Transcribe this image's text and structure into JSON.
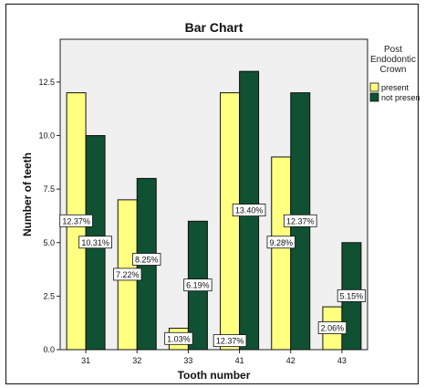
{
  "chart_data": {
    "type": "bar",
    "title": "Bar Chart",
    "xlabel": "Tooth number",
    "ylabel": "Number of teeth",
    "categories": [
      "31",
      "32",
      "33",
      "41",
      "42",
      "43"
    ],
    "ylim": [
      0,
      14.5
    ],
    "yticks": [
      "0.0",
      "2.5",
      "5.0",
      "7.5",
      "10.0",
      "12.5"
    ],
    "legend": {
      "title_lines": [
        "Post",
        "Endodontic",
        "Crown"
      ],
      "placement": "right"
    },
    "series": [
      {
        "name": "present",
        "color": "#ffff80",
        "values": [
          12,
          7,
          1,
          12,
          9,
          2
        ],
        "labels": [
          "12.37%",
          "7.22%",
          "1.03%",
          "12.37%",
          "9.28%",
          "2.06%"
        ],
        "label_values": [
          6.0,
          3.5,
          0.5,
          0.4,
          5.0,
          1.0
        ]
      },
      {
        "name": "not present",
        "color": "#0f5132",
        "values": [
          10,
          8,
          6,
          13,
          12,
          5
        ],
        "labels": [
          "10.31%",
          "8.25%",
          "6.19%",
          "13.40%",
          "12.37%",
          "5.15%"
        ],
        "label_values": [
          5.0,
          4.2,
          3.0,
          6.5,
          6.0,
          2.5
        ]
      }
    ],
    "plot_background": "#f0f0f0",
    "grid": false
  }
}
